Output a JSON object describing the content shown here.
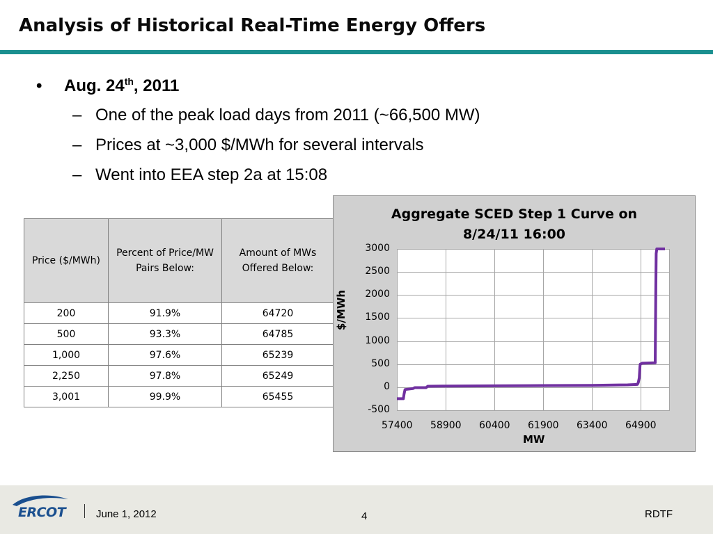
{
  "slide": {
    "title": "Analysis of Historical Real-Time Energy Offers",
    "bullet": {
      "marker": "•",
      "text_main": "Aug. 24",
      "text_sup": "th",
      "text_end": ", 2011"
    },
    "sub_bullets": [
      {
        "marker": "–",
        "text": "One of the peak load days from 2011 (~66,500 MW)"
      },
      {
        "marker": "–",
        "text": "Prices at ~3,000 $/MWh for several intervals"
      },
      {
        "marker": "–",
        "text": "Went into EEA step 2a at 15:08"
      }
    ]
  },
  "table": {
    "headers": [
      "Price ($/MWh)",
      "Percent of Price/MW Pairs Below:",
      "Amount of MWs Offered Below:"
    ],
    "rows": [
      [
        "200",
        "91.9%",
        "64720"
      ],
      [
        "500",
        "93.3%",
        "64785"
      ],
      [
        "1,000",
        "97.6%",
        "65239"
      ],
      [
        "2,250",
        "97.8%",
        "65249"
      ],
      [
        "3,001",
        "99.9%",
        "65455"
      ]
    ]
  },
  "chart_data": {
    "type": "line",
    "title_line1": "Aggregate SCED Step 1 Curve on",
    "title_line2": "8/24/11 16:00",
    "xlabel": "MW",
    "ylabel": "$/MWh",
    "xlim": [
      57400,
      65800
    ],
    "ylim": [
      -500,
      3000
    ],
    "x_ticks": [
      "57400",
      "58900",
      "60400",
      "61900",
      "63400",
      "64900"
    ],
    "y_ticks": [
      "3000",
      "2500",
      "2000",
      "1500",
      "1000",
      "500",
      "0",
      "-500"
    ],
    "grid": true,
    "line_color": "#7030a0",
    "series": [
      {
        "x": [
          57400,
          57600,
          57620,
          57650,
          57900,
          57950,
          58300,
          58350,
          58900,
          60400,
          61900,
          63400,
          64500,
          64800,
          64830,
          64860,
          64880,
          64890,
          64950,
          65350,
          65370,
          65380,
          65400,
          65650
        ],
        "y": [
          -250,
          -250,
          -150,
          -50,
          -30,
          -10,
          -10,
          20,
          25,
          30,
          35,
          40,
          50,
          60,
          100,
          200,
          450,
          500,
          520,
          530,
          2200,
          2900,
          3000,
          3000
        ]
      }
    ]
  },
  "footer": {
    "logo_text": "ERCOT",
    "date": "June 1, 2012",
    "page": "4",
    "org": "RDTF"
  }
}
